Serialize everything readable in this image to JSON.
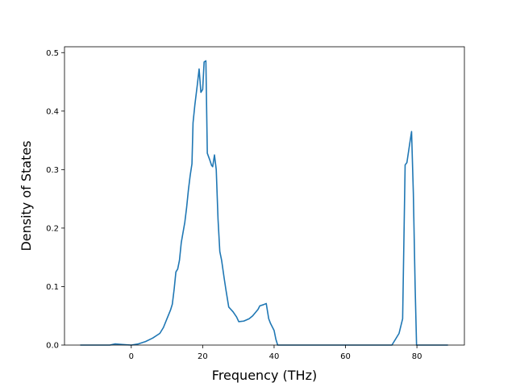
{
  "chart_data": {
    "type": "line",
    "title": "",
    "xlabel": "Frequency (THz)",
    "ylabel": "Density of States",
    "xlim": [
      -18.7,
      93.3
    ],
    "ylim": [
      0.0,
      0.51
    ],
    "xticks": [
      0,
      20,
      40,
      60,
      80
    ],
    "yticks": [
      0.0,
      0.1,
      0.2,
      0.3,
      0.4,
      0.5
    ],
    "xtick_labels": [
      "0",
      "20",
      "40",
      "60",
      "80"
    ],
    "ytick_labels": [
      "0.0",
      "0.1",
      "0.2",
      "0.3",
      "0.4",
      "0.5"
    ],
    "grid": false,
    "legend": "none",
    "series": [
      {
        "color": "#1f77b4",
        "points": [
          [
            -14.3,
            0.0
          ],
          [
            -6.0,
            0.0
          ],
          [
            -4.5,
            0.002
          ],
          [
            -2.5,
            0.001
          ],
          [
            0.0,
            0.0
          ],
          [
            2.0,
            0.002
          ],
          [
            4.0,
            0.006
          ],
          [
            6.0,
            0.012
          ],
          [
            8.0,
            0.02
          ],
          [
            9.0,
            0.03
          ],
          [
            10.0,
            0.045
          ],
          [
            11.0,
            0.06
          ],
          [
            11.5,
            0.07
          ],
          [
            12.0,
            0.095
          ],
          [
            12.5,
            0.125
          ],
          [
            13.0,
            0.13
          ],
          [
            13.5,
            0.145
          ],
          [
            14.0,
            0.175
          ],
          [
            15.0,
            0.21
          ],
          [
            15.5,
            0.235
          ],
          [
            16.0,
            0.265
          ],
          [
            16.5,
            0.29
          ],
          [
            17.0,
            0.31
          ],
          [
            17.3,
            0.38
          ],
          [
            17.8,
            0.41
          ],
          [
            18.5,
            0.445
          ],
          [
            19.0,
            0.472
          ],
          [
            19.5,
            0.432
          ],
          [
            20.0,
            0.437
          ],
          [
            20.4,
            0.484
          ],
          [
            20.9,
            0.486
          ],
          [
            21.3,
            0.328
          ],
          [
            21.9,
            0.318
          ],
          [
            22.5,
            0.307
          ],
          [
            22.8,
            0.305
          ],
          [
            23.3,
            0.325
          ],
          [
            23.8,
            0.3
          ],
          [
            24.3,
            0.215
          ],
          [
            24.8,
            0.16
          ],
          [
            25.3,
            0.145
          ],
          [
            26.0,
            0.115
          ],
          [
            26.5,
            0.095
          ],
          [
            27.3,
            0.065
          ],
          [
            28.5,
            0.057
          ],
          [
            29.5,
            0.048
          ],
          [
            30.1,
            0.04
          ],
          [
            31.5,
            0.041
          ],
          [
            33.0,
            0.045
          ],
          [
            34.0,
            0.05
          ],
          [
            35.5,
            0.061
          ],
          [
            36.0,
            0.067
          ],
          [
            37.0,
            0.069
          ],
          [
            37.8,
            0.071
          ],
          [
            38.5,
            0.045
          ],
          [
            39.0,
            0.037
          ],
          [
            40.0,
            0.025
          ],
          [
            40.5,
            0.01
          ],
          [
            41.0,
            0.0
          ],
          [
            72.0,
            0.0
          ],
          [
            73.0,
            0.0
          ],
          [
            75.0,
            0.02
          ],
          [
            76.0,
            0.045
          ],
          [
            76.7,
            0.308
          ],
          [
            77.2,
            0.312
          ],
          [
            78.0,
            0.345
          ],
          [
            78.5,
            0.365
          ],
          [
            79.0,
            0.26
          ],
          [
            79.5,
            0.1
          ],
          [
            79.9,
            0.0
          ],
          [
            88.7,
            0.0
          ]
        ]
      }
    ]
  }
}
